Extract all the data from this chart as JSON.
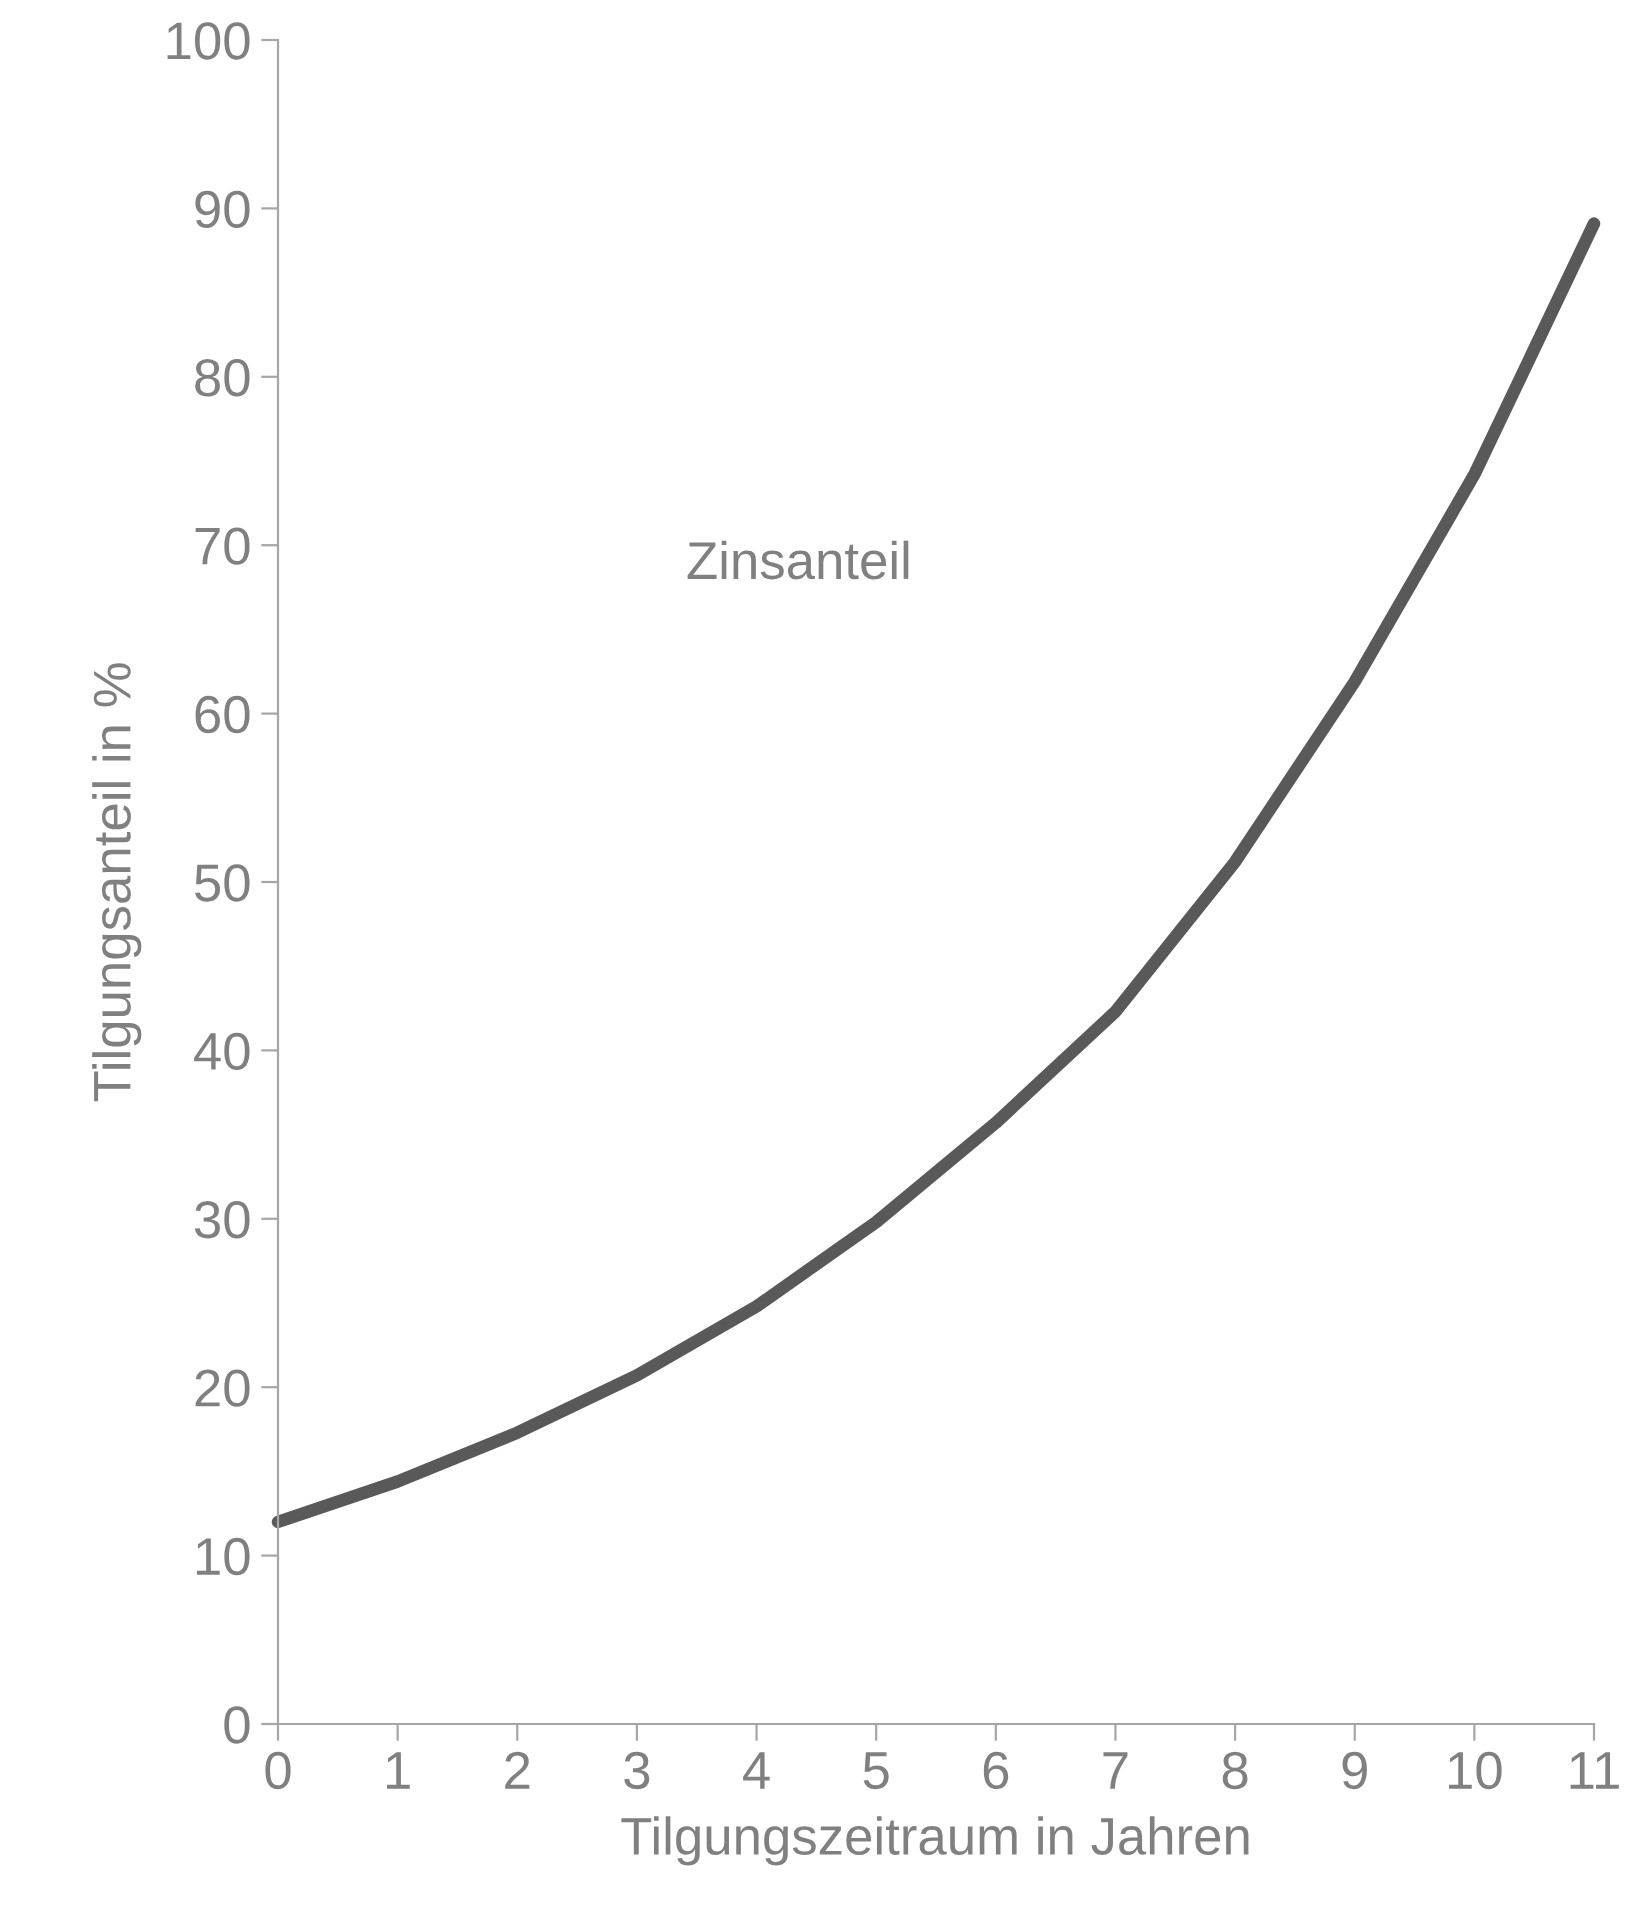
{
  "chart_data": {
    "type": "line",
    "xlabel": "Tilgungszeitraum in Jahren",
    "ylabel": "Tilgungsanteil in %",
    "annotations": [
      "Zinsanteil"
    ],
    "x": [
      0,
      1,
      2,
      3,
      4,
      5,
      6,
      7,
      8,
      9,
      10,
      11
    ],
    "series": [
      {
        "color": "#595959",
        "values": [
          12.0,
          14.4,
          17.3,
          20.7,
          24.8,
          29.8,
          35.7,
          42.3,
          51.2,
          61.9,
          74.2,
          89.1
        ]
      }
    ],
    "xlim": [
      0,
      11
    ],
    "xticks": [
      0,
      1,
      2,
      3,
      4,
      5,
      6,
      7,
      8,
      9,
      10,
      11
    ],
    "ylim": [
      0,
      100
    ],
    "yticks": [
      0,
      10,
      20,
      30,
      40,
      50,
      60,
      70,
      80,
      90,
      100
    ],
    "grid": false,
    "legend": false,
    "marker": "none",
    "line_style": "solid"
  }
}
